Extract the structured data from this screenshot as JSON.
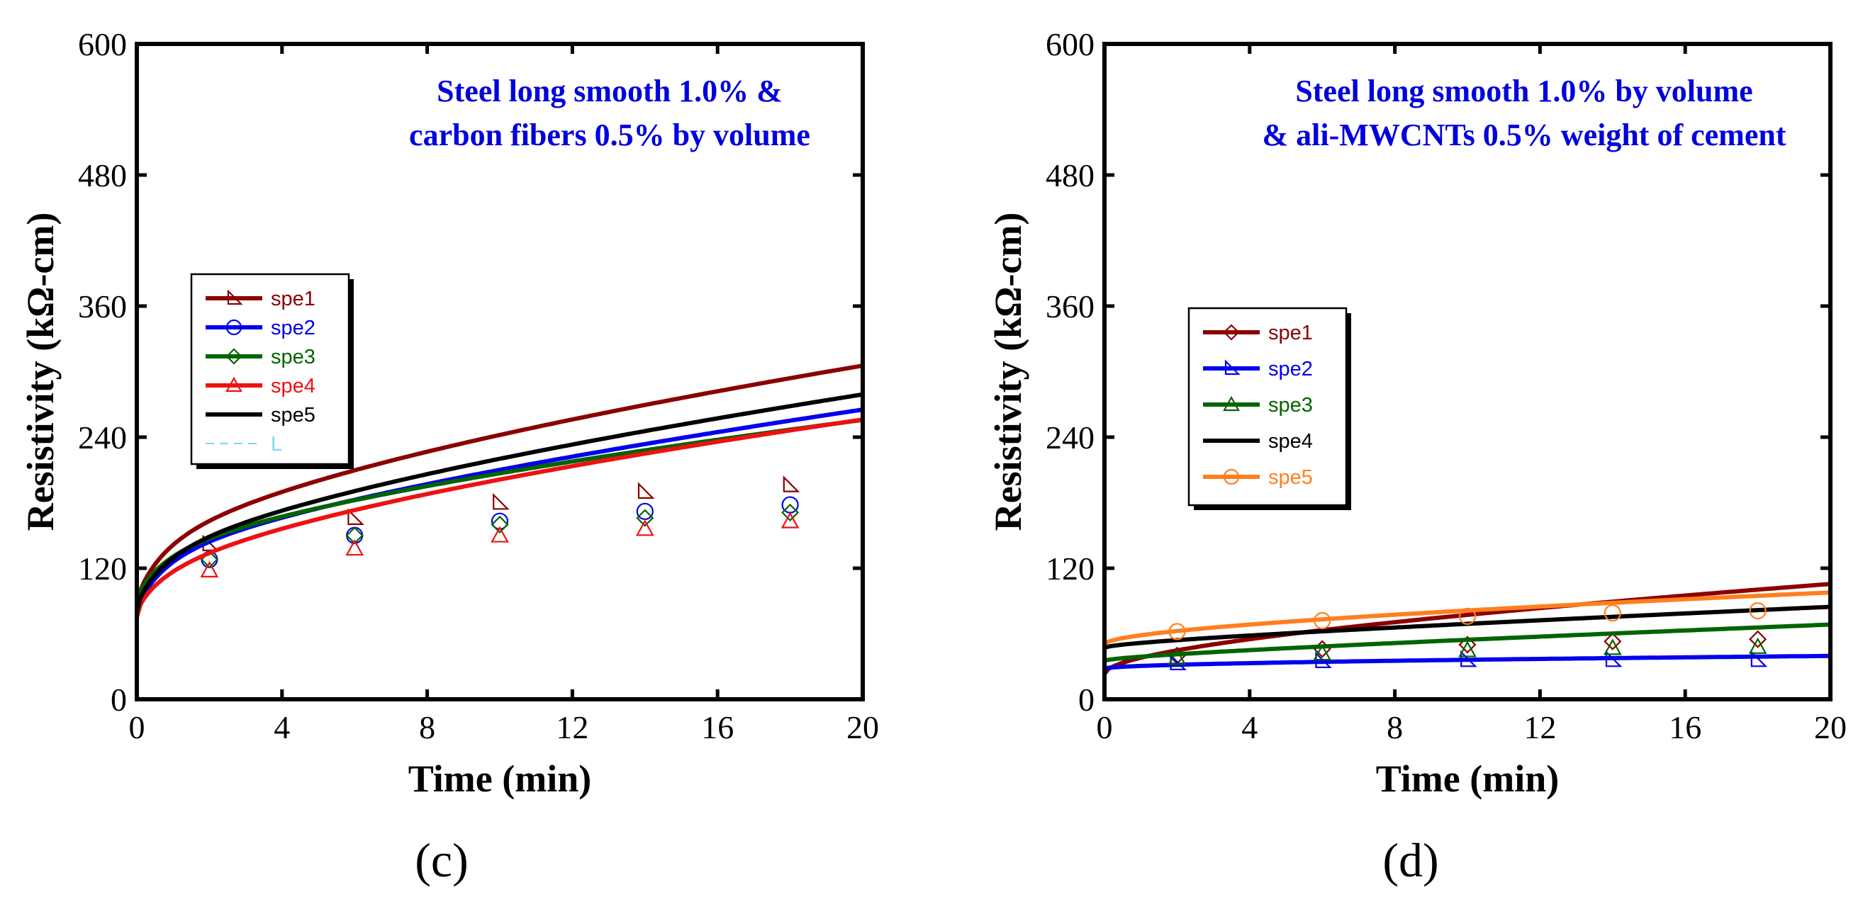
{
  "colors": {
    "darkred": "#8b0000",
    "blue": "#0000ee",
    "green": "#006400",
    "red": "#ee1111",
    "black": "#000000",
    "orange": "#ff7f1e",
    "cyan": "#7fd8ef",
    "title": "#0000dd"
  },
  "chart_data": [
    {
      "type": "line",
      "caption": "(c)",
      "title_lines": [
        "Steel long smooth 1.0% &",
        "carbon fibers 0.5% by volume"
      ],
      "xlabel": "Time (min)",
      "ylabel": "Resistivity (kΩ-cm)",
      "xlim": [
        0,
        20
      ],
      "ylim": [
        0,
        600
      ],
      "xticks": [
        0,
        4,
        8,
        12,
        16,
        20
      ],
      "yticks": [
        0,
        120,
        240,
        360,
        480,
        600
      ],
      "legend_position": "middle-left",
      "legend_extra": "L",
      "series": [
        {
          "name": "spe1",
          "color": "darkred",
          "marker": "right-triangle",
          "y0": 85,
          "a": 37,
          "p": 0.5,
          "b": 25,
          "c": 30,
          "markers": {
            "x": [
              2,
              6,
              10,
              14,
              18
            ],
            "y": [
              142,
              166,
              180,
              190,
              196
            ]
          }
        },
        {
          "name": "spe2",
          "color": "blue",
          "marker": "circle",
          "y0": 78,
          "a": 28,
          "p": 0.5,
          "b": 25,
          "c": 37,
          "markers": {
            "x": [
              2,
              6,
              10,
              14,
              18
            ],
            "y": [
              128,
              150,
              163,
              172,
              178
            ]
          }
        },
        {
          "name": "spe3",
          "color": "green",
          "marker": "diamond",
          "y0": 88,
          "a": 27,
          "p": 0.5,
          "b": 20,
          "c": 27,
          "markers": {
            "x": [
              2,
              6,
              10,
              14,
              18
            ],
            "y": [
              128,
              150,
              160,
              166,
              171
            ]
          }
        },
        {
          "name": "spe4",
          "color": "red",
          "marker": "triangle",
          "y0": 75,
          "a": 32,
          "p": 0.5,
          "b": 12,
          "c": 26,
          "markers": {
            "x": [
              2,
              6,
              10,
              14,
              18
            ],
            "y": [
              118,
              138,
              150,
              156,
              163
            ]
          }
        },
        {
          "name": "spe5",
          "color": "black",
          "marker": "none",
          "y0": 80,
          "a": 32,
          "p": 0.5,
          "b": 22,
          "c": 34,
          "markers": {
            "x": [],
            "y": []
          }
        }
      ]
    },
    {
      "type": "line",
      "caption": "(d)",
      "title_lines": [
        "Steel long smooth 1.0% by volume",
        "& ali-MWCNTs 0.5% weight of cement"
      ],
      "xlabel": "Time (min)",
      "ylabel": "Resistivity (kΩ-cm)",
      "xlim": [
        0,
        20
      ],
      "ylim": [
        0,
        600
      ],
      "xticks": [
        0,
        4,
        8,
        12,
        16,
        20
      ],
      "yticks": [
        0,
        120,
        240,
        360,
        480,
        600
      ],
      "legend_position": "middle-left",
      "legend_extra": "",
      "series": [
        {
          "name": "spe1",
          "color": "darkred",
          "marker": "diamond",
          "y0": 23,
          "a": 14,
          "p": 0.5,
          "b": 0,
          "c": 20,
          "markers": {
            "x": [
              2,
              6,
              10,
              14,
              18
            ],
            "y": [
              40,
              46,
              50,
              53,
              55
            ]
          }
        },
        {
          "name": "spe2",
          "color": "blue",
          "marker": "right-triangle",
          "y0": 28,
          "a": 2.5,
          "p": 0.5,
          "b": 0,
          "c": 0.5,
          "markers": {
            "x": [
              2,
              6,
              10,
              14,
              18
            ],
            "y": [
              33,
              35,
              36,
              36,
              36
            ]
          }
        },
        {
          "name": "spe3",
          "color": "green",
          "marker": "triangle",
          "y0": 35,
          "a": 3,
          "p": 0.5,
          "b": 0,
          "c": 20,
          "markers": {
            "x": [
              2,
              6,
              10,
              14,
              18
            ],
            "y": [
              38,
              42,
              45,
              47,
              48
            ]
          }
        },
        {
          "name": "spe4",
          "color": "black",
          "marker": "none",
          "y0": 47,
          "a": 3.5,
          "p": 0.5,
          "b": 0,
          "c": 22,
          "markers": {
            "x": [],
            "y": []
          }
        },
        {
          "name": "spe5",
          "color": "orange",
          "marker": "circle",
          "y0": 50,
          "a": 8,
          "p": 0.5,
          "b": 0,
          "c": 12,
          "markers": {
            "x": [
              2,
              6,
              10,
              14,
              18
            ],
            "y": [
              62,
              72,
              76,
              79,
              81
            ]
          }
        }
      ]
    }
  ]
}
